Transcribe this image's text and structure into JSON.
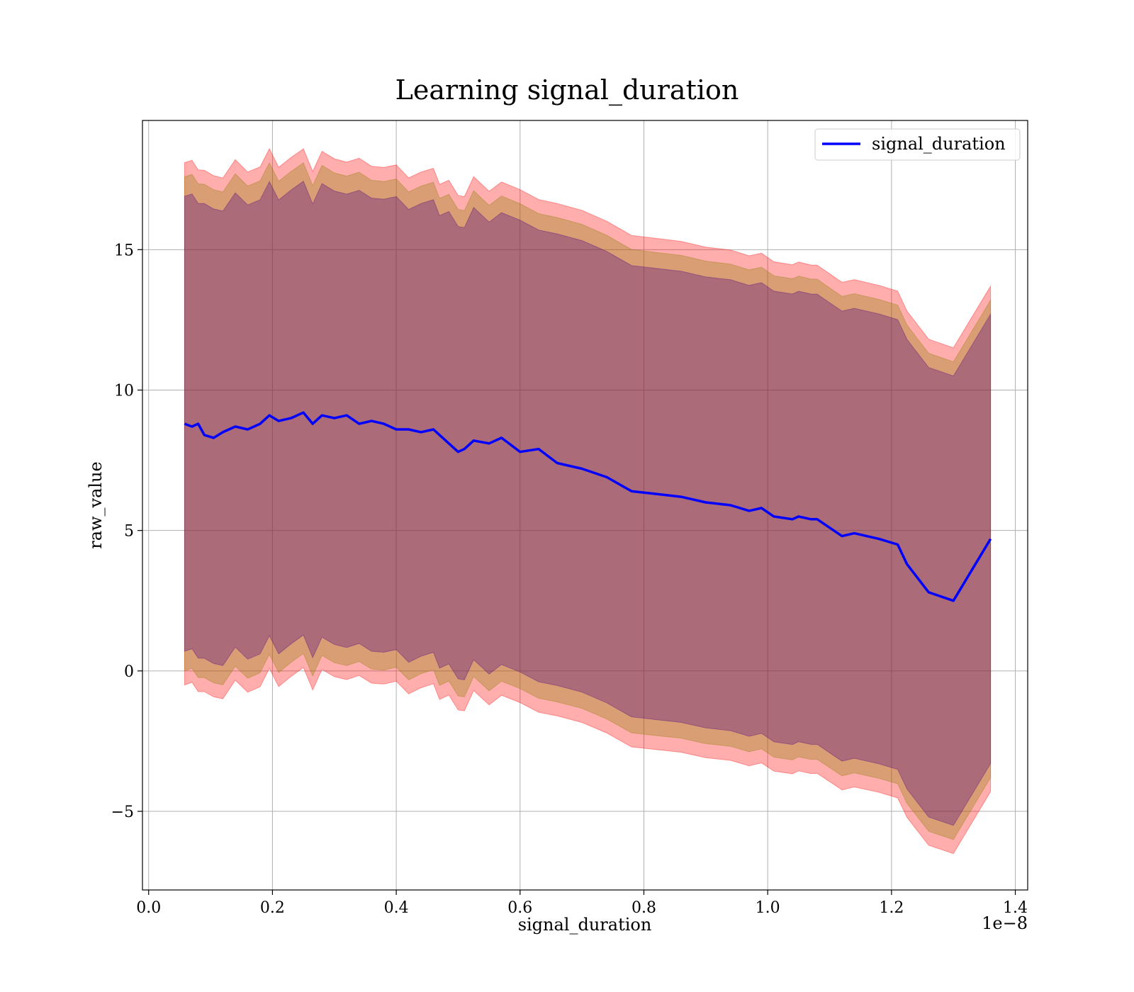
{
  "chart_data": {
    "type": "line",
    "title": "Learning signal_duration",
    "xlabel": "signal_duration",
    "ylabel": "raw_value",
    "x_offset_label": "1e−8",
    "xlim": [
      -0.01,
      1.42
    ],
    "ylim": [
      -7.8,
      19.6
    ],
    "xticks": [
      0.0,
      0.2,
      0.4,
      0.6,
      0.8,
      1.0,
      1.2,
      1.4
    ],
    "xtick_labels": [
      "0.0",
      "0.2",
      "0.4",
      "0.6",
      "0.8",
      "1.0",
      "1.2",
      "1.4"
    ],
    "yticks": [
      -5,
      0,
      5,
      10,
      15
    ],
    "ytick_labels": [
      "−5",
      "0",
      "5",
      "10",
      "15"
    ],
    "grid": true,
    "legend": {
      "entries": [
        "signal_duration"
      ],
      "location": "top-right"
    },
    "colors": {
      "line": "#0000ff",
      "band_outer": "#ff0000",
      "band_mid": "#8b8000",
      "band_inner": "#4b0082"
    },
    "series": [
      {
        "name": "signal_duration",
        "x": [
          0.058,
          0.07,
          0.08,
          0.09,
          0.105,
          0.12,
          0.14,
          0.16,
          0.18,
          0.195,
          0.21,
          0.23,
          0.25,
          0.265,
          0.28,
          0.3,
          0.32,
          0.34,
          0.36,
          0.38,
          0.4,
          0.42,
          0.44,
          0.46,
          0.47,
          0.485,
          0.5,
          0.51,
          0.525,
          0.55,
          0.57,
          0.6,
          0.63,
          0.66,
          0.7,
          0.74,
          0.78,
          0.82,
          0.86,
          0.9,
          0.94,
          0.97,
          0.99,
          1.01,
          1.04,
          1.05,
          1.07,
          1.08,
          1.1,
          1.12,
          1.14,
          1.18,
          1.21,
          1.225,
          1.26,
          1.3,
          1.36
        ],
        "values": [
          8.8,
          8.7,
          8.8,
          8.4,
          8.3,
          8.5,
          8.7,
          8.6,
          8.8,
          9.1,
          8.9,
          9.0,
          9.2,
          8.8,
          9.1,
          9.0,
          9.1,
          8.8,
          8.9,
          8.8,
          8.6,
          8.6,
          8.5,
          8.6,
          8.4,
          8.1,
          7.8,
          7.9,
          8.2,
          8.1,
          8.3,
          7.8,
          7.9,
          7.4,
          7.2,
          6.9,
          6.4,
          6.3,
          6.2,
          6.0,
          5.9,
          5.7,
          5.8,
          5.5,
          5.4,
          5.5,
          5.4,
          5.4,
          5.1,
          4.8,
          4.9,
          4.7,
          4.5,
          3.8,
          2.8,
          2.5,
          4.7
        ]
      }
    ],
    "bands": [
      {
        "name": "outer",
        "half_width_start": 9.3,
        "half_width_end": 9.0
      },
      {
        "name": "mid",
        "half_width_start": 8.8,
        "half_width_end": 8.5
      },
      {
        "name": "inner",
        "half_width_start": 8.1,
        "half_width_end": 8.0
      }
    ]
  }
}
